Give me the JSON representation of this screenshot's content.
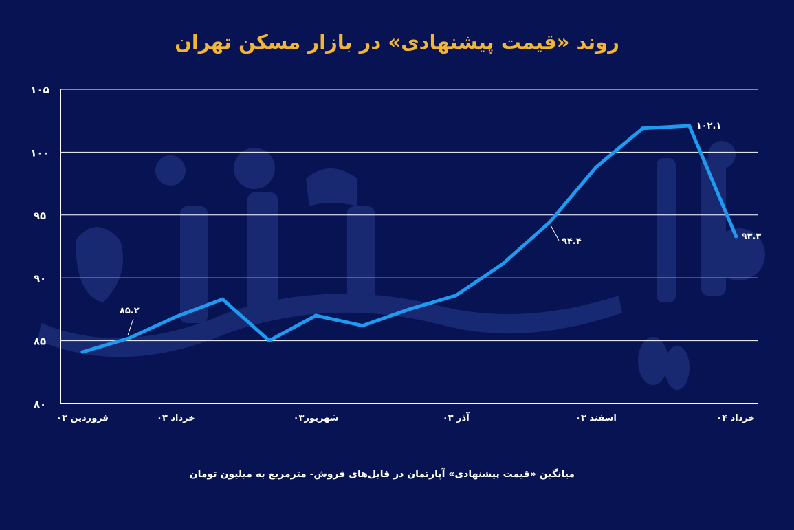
{
  "chart_data": {
    "type": "line",
    "title": "روند «قیمت پیشنهادی» در بازار مسکن تهران",
    "xlabel": "",
    "ylabel": "",
    "ylim": [
      80,
      105
    ],
    "yticks": [
      "۱۰۵",
      "۱۰۰",
      "۹۵",
      "۹۰",
      "۸۵",
      "۸۰"
    ],
    "ytick_values": [
      105,
      100,
      95,
      90,
      85,
      80
    ],
    "xtick_labels": [
      "فروردین ۰۳",
      "خرداد ۰۳",
      "شهریور۰۳",
      "آذر ۰۳",
      "اسفند ۰۳",
      "خرداد ۰۴"
    ],
    "xtick_positions": [
      0,
      2,
      5,
      8,
      11,
      14
    ],
    "grid": true,
    "legend_position": "bottom",
    "series": [
      {
        "name": "میانگین «قیمت پیشنهادی» آپارتمان در فایل‌های فروش- مترمربع به میلیون تومان",
        "color": "#1e9bf0",
        "values": [
          84.1,
          85.2,
          86.9,
          88.3,
          85.0,
          87.0,
          86.2,
          87.5,
          88.6,
          91.1,
          94.4,
          98.8,
          101.9,
          102.1,
          93.3
        ]
      }
    ],
    "annotations": [
      {
        "index": 1,
        "text": "۸۵.۲"
      },
      {
        "index": 10,
        "text": "۹۴.۴"
      },
      {
        "index": 13,
        "text": "۱۰۲.۱"
      },
      {
        "index": 14,
        "text": "۹۳.۳"
      }
    ]
  },
  "colors": {
    "background": "#071352",
    "title": "#f2b632",
    "line": "#1e9bf0",
    "axis": "#ffffff",
    "watermark": "#1a2c75"
  }
}
